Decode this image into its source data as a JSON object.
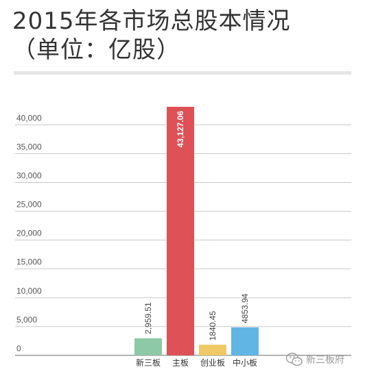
{
  "title_line1": "2015年各市场总股本情况",
  "title_line2": "（单位：亿股）",
  "chart_data": {
    "type": "bar",
    "categories": [
      "新三板",
      "主板",
      "创业板",
      "中小板"
    ],
    "values": [
      2959.51,
      43127.06,
      1840.45,
      4853.94
    ],
    "value_labels": [
      "2,959.51",
      "43,127.06",
      "1840.45",
      "4853.94"
    ],
    "colors": [
      "#8ec9a7",
      "#dd5157",
      "#efc965",
      "#60b5e5"
    ],
    "y_ticks": [
      0,
      5000,
      10000,
      15000,
      20000,
      25000,
      30000,
      35000,
      40000
    ],
    "y_tick_labels": [
      "0",
      "5,000",
      "10,000",
      "15,000",
      "20,000",
      "25,000",
      "30,000",
      "35,000",
      "40,000"
    ],
    "ylim": [
      0,
      43127.06
    ],
    "grid": true
  },
  "watermark": {
    "text": "新三板府",
    "icon": "wechat-logo-icon"
  }
}
